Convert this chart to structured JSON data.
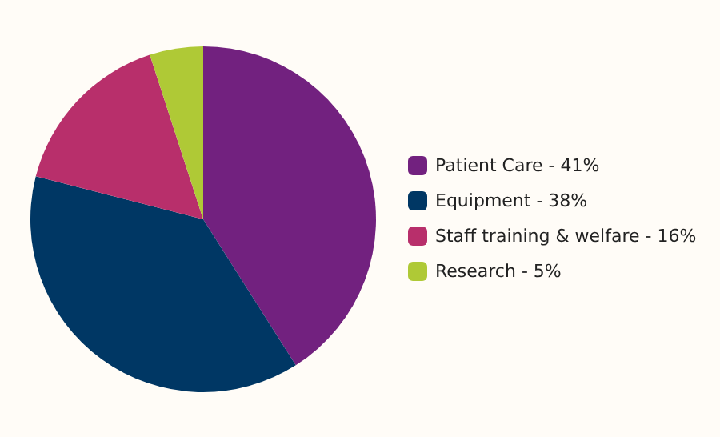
{
  "chart_data": {
    "type": "pie",
    "categories": [
      "Patient Care - 41%",
      "Equipment - 38%",
      "Staff training & welfare - 16%",
      "Research - 5%"
    ],
    "values": [
      41,
      38,
      16,
      5
    ],
    "colors": [
      "#72217f",
      "#003764",
      "#b82f6b",
      "#afc936"
    ],
    "legend": "right"
  }
}
